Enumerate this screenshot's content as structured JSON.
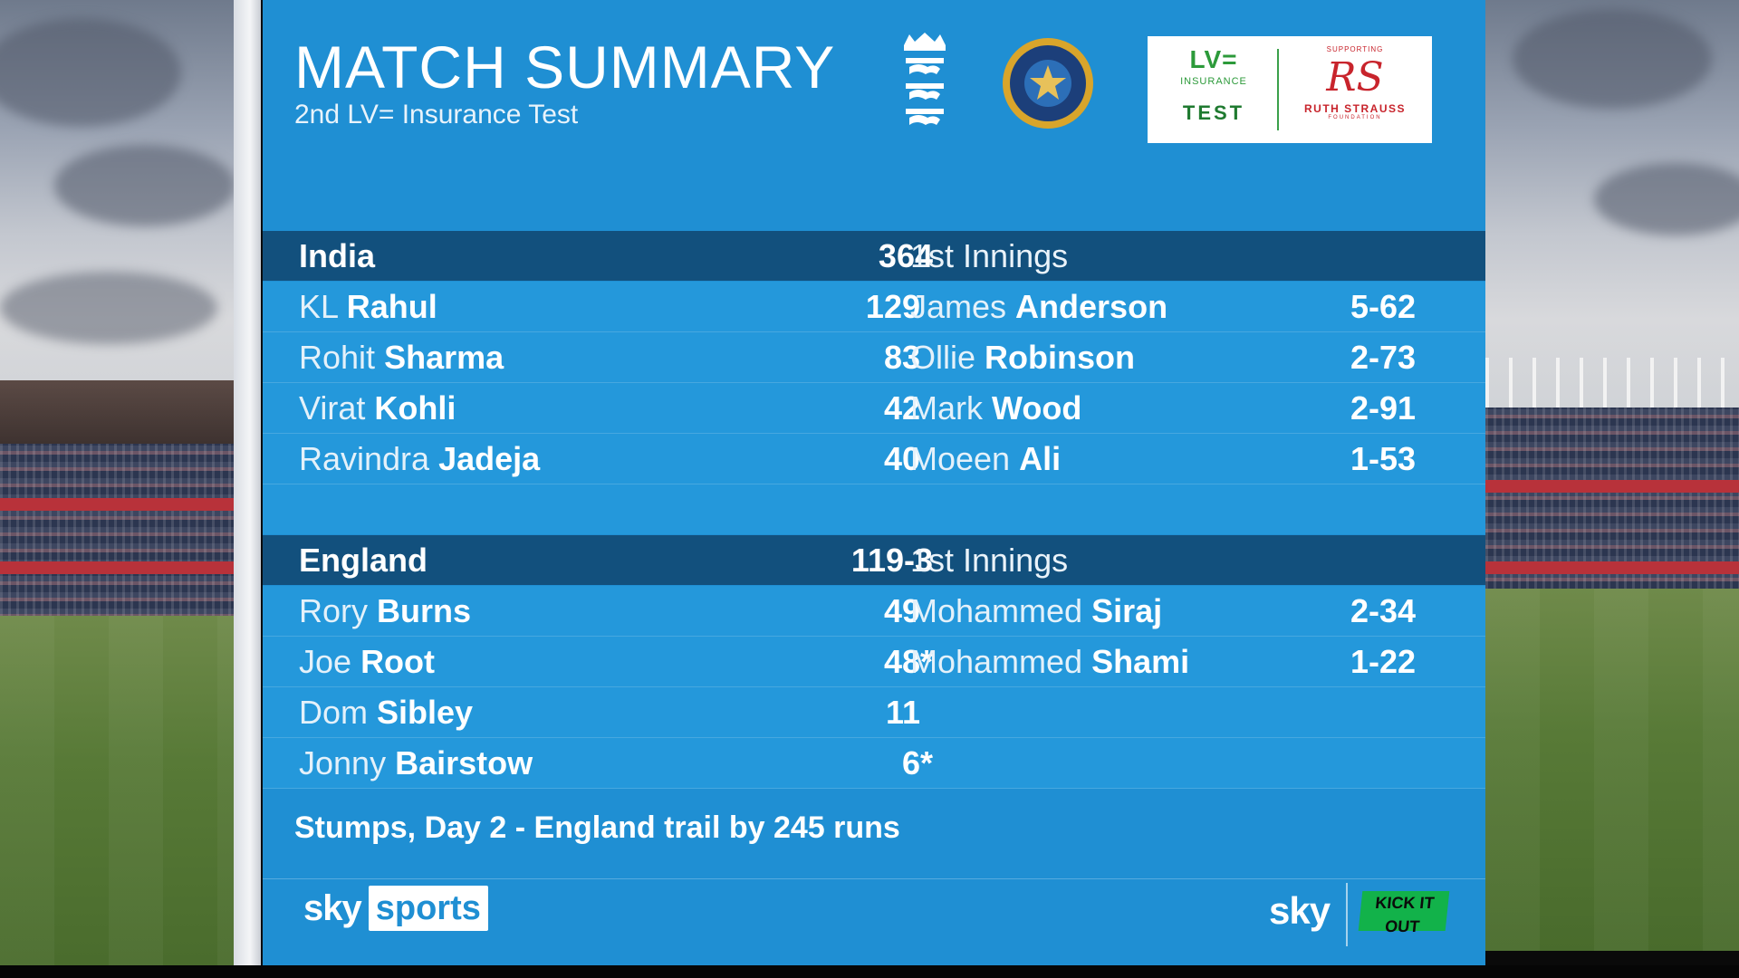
{
  "header": {
    "title": "MATCH SUMMARY",
    "subtitle": "2nd LV= Insurance Test"
  },
  "sponsor": {
    "lv_logo": "LV=",
    "lv_insurance": "INSURANCE",
    "lv_test": "TEST",
    "rs_supporting": "SUPPORTING",
    "rs_mark": "RS",
    "rs_name": "RUTH STRAUSS",
    "rs_foundation": "FOUNDATION"
  },
  "innings": [
    {
      "team": "India",
      "score": "364",
      "label": "1st Innings",
      "batting": [
        {
          "first": "KL",
          "last": "Rahul",
          "runs": "129",
          "star": ""
        },
        {
          "first": "Rohit",
          "last": "Sharma",
          "runs": "83",
          "star": ""
        },
        {
          "first": "Virat",
          "last": "Kohli",
          "runs": "42",
          "star": ""
        },
        {
          "first": "Ravindra",
          "last": "Jadeja",
          "runs": "40",
          "star": ""
        }
      ],
      "bowling": [
        {
          "first": "James",
          "last": "Anderson",
          "figures": "5-62"
        },
        {
          "first": "Ollie",
          "last": "Robinson",
          "figures": "2-73"
        },
        {
          "first": "Mark",
          "last": "Wood",
          "figures": "2-91"
        },
        {
          "first": "Moeen",
          "last": "Ali",
          "figures": "1-53"
        }
      ]
    },
    {
      "team": "England",
      "score": "119-3",
      "label": "1st Innings",
      "batting": [
        {
          "first": "Rory",
          "last": "Burns",
          "runs": "49",
          "star": ""
        },
        {
          "first": "Joe",
          "last": "Root",
          "runs": "48",
          "star": "*"
        },
        {
          "first": "Dom",
          "last": "Sibley",
          "runs": "11",
          "star": ""
        },
        {
          "first": "Jonny",
          "last": "Bairstow",
          "runs": "6",
          "star": "*"
        }
      ],
      "bowling": [
        {
          "first": "Mohammed",
          "last": "Siraj",
          "figures": "2-34"
        },
        {
          "first": "Mohammed",
          "last": "Shami",
          "figures": "1-22"
        }
      ]
    }
  ],
  "status": "Stumps, Day 2 - England trail by 245 runs",
  "footer": {
    "sky": "sky",
    "sports": "sports",
    "sky_right": "sky",
    "kick_it_out": "KICK IT OUT"
  },
  "colors": {
    "panel": "#1f8fd3",
    "header_row": "#12507d",
    "row": "#2498db"
  }
}
